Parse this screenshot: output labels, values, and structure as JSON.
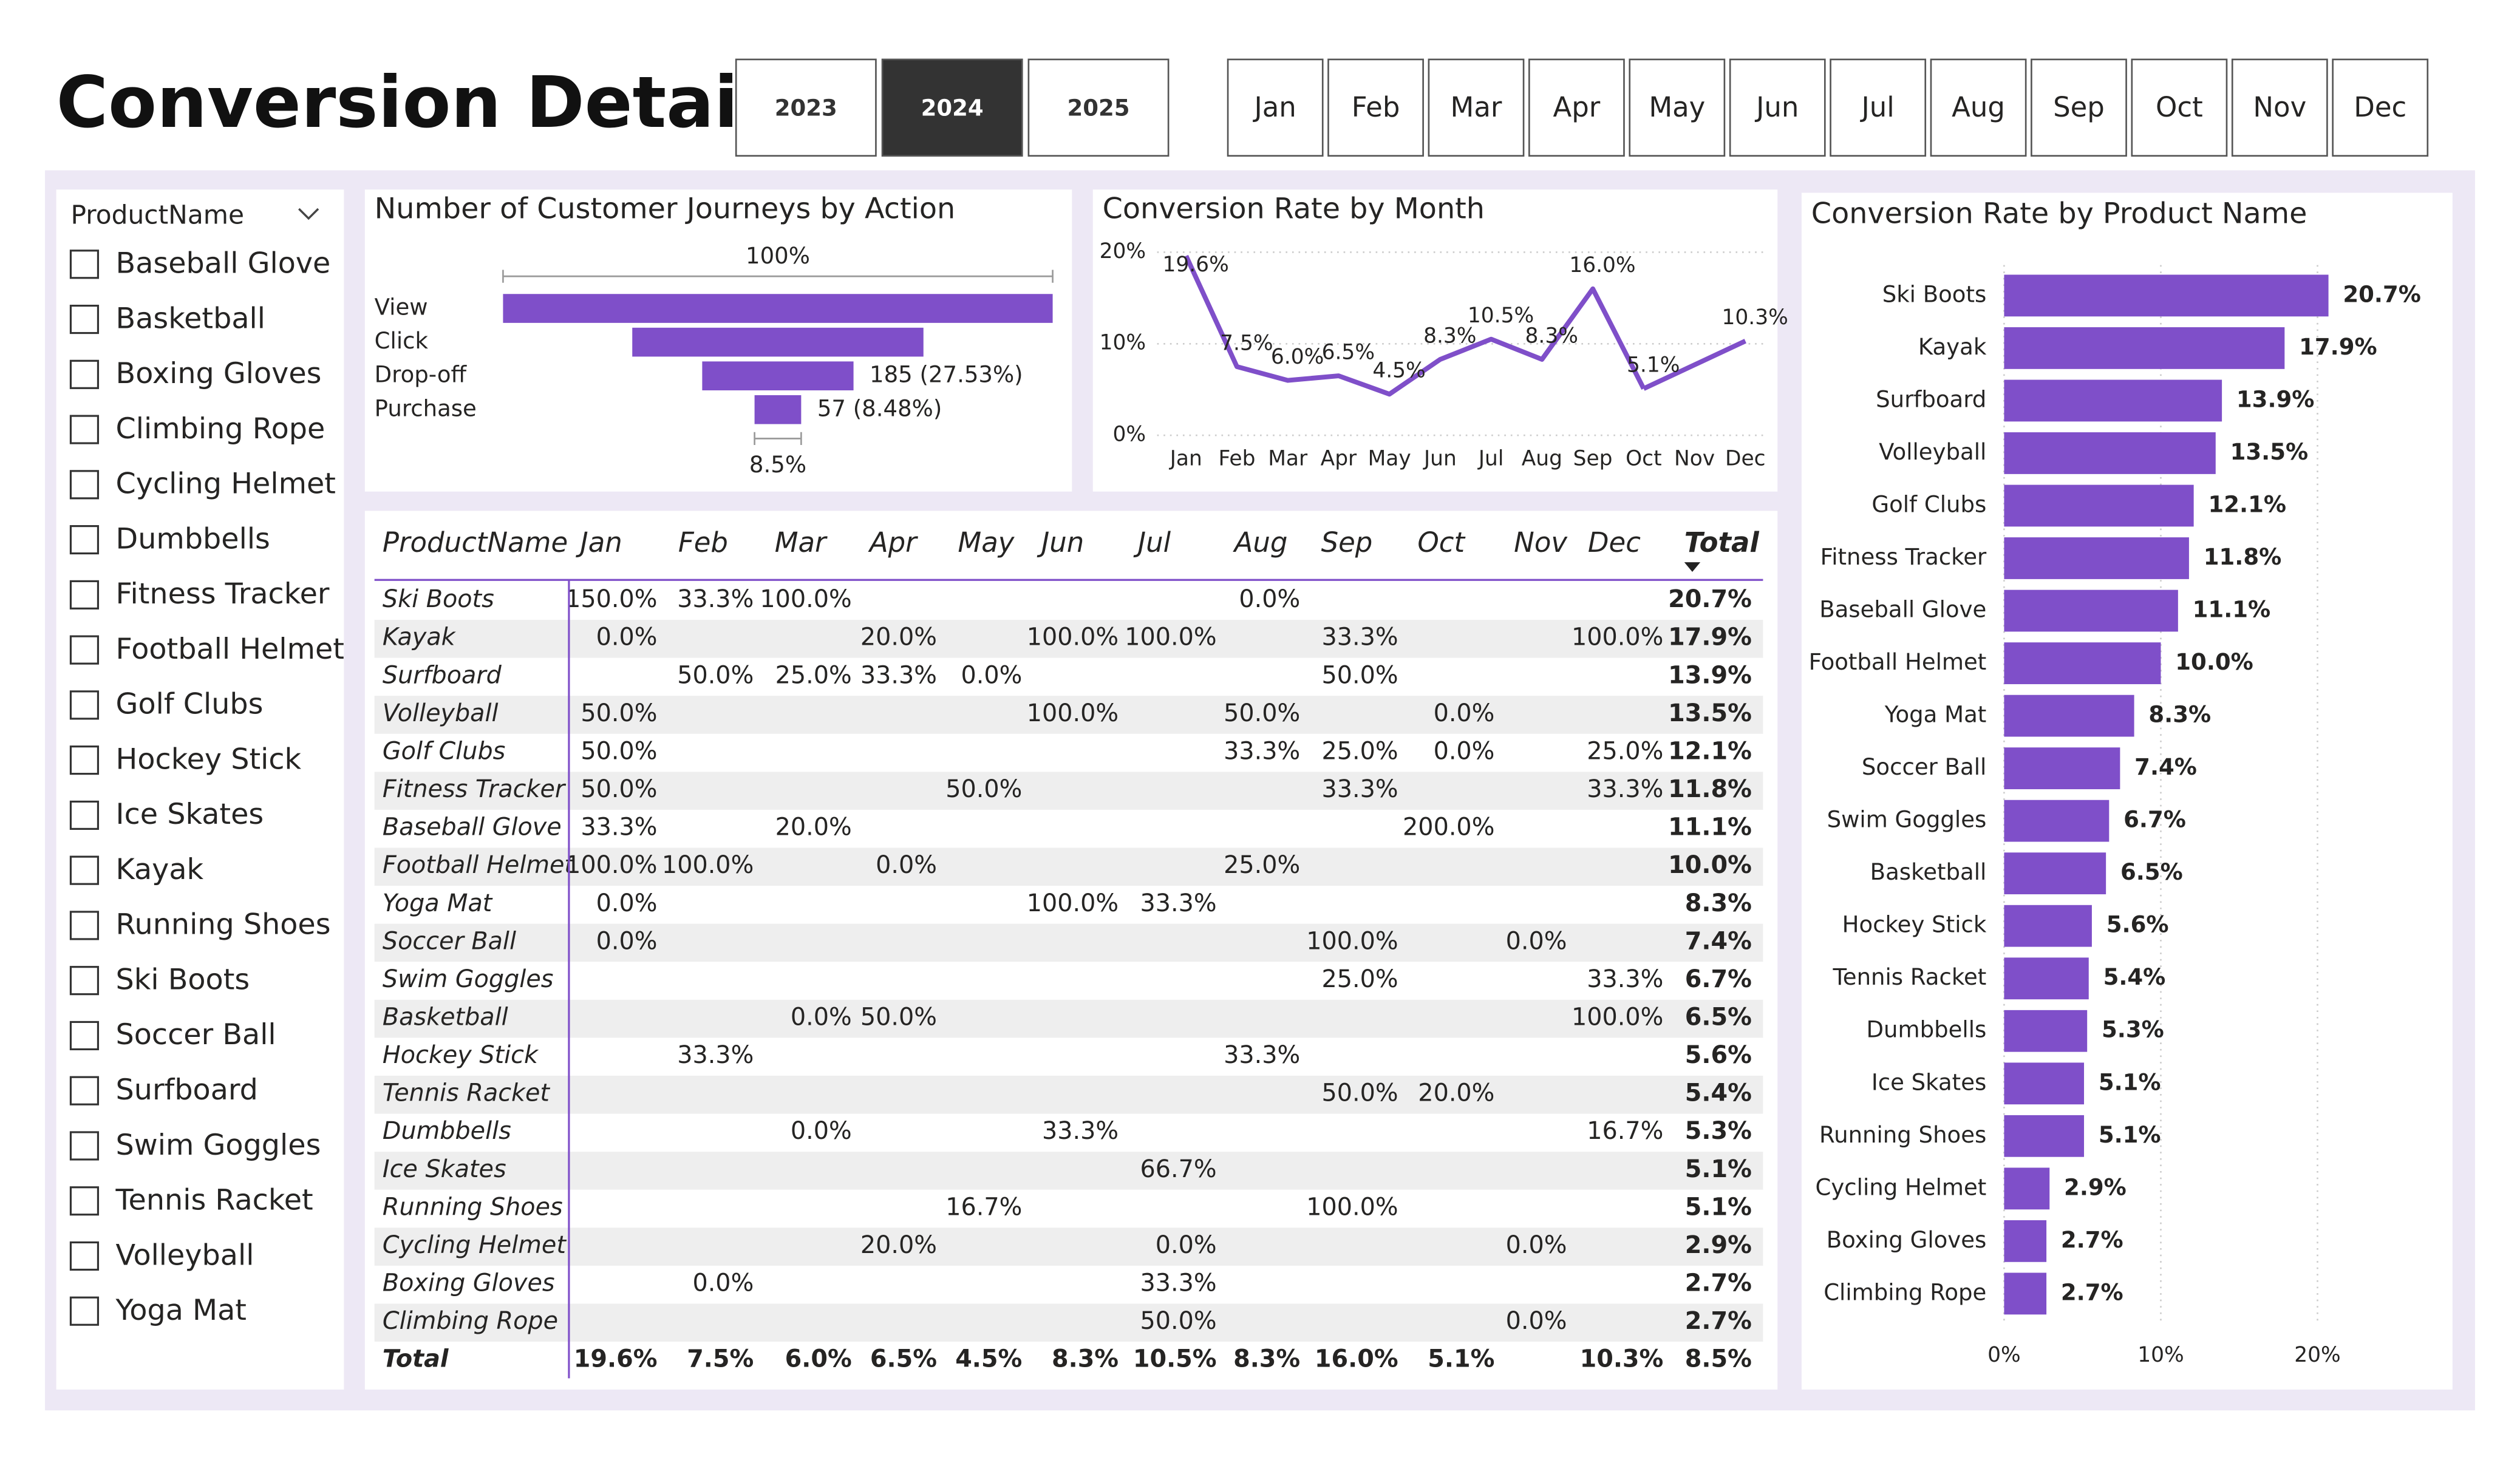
{
  "header": {
    "title": "Conversion Details",
    "years": [
      "2023",
      "2024",
      "2025"
    ],
    "selected_year": "2024",
    "months": [
      "Jan",
      "Feb",
      "Mar",
      "Apr",
      "May",
      "Jun",
      "Jul",
      "Aug",
      "Sep",
      "Oct",
      "Nov",
      "Dec"
    ]
  },
  "slicer": {
    "title": "ProductName",
    "items": [
      "Baseball Glove",
      "Basketball",
      "Boxing Gloves",
      "Climbing Rope",
      "Cycling Helmet",
      "Dumbbells",
      "Fitness Tracker",
      "Football Helmet",
      "Golf Clubs",
      "Hockey Stick",
      "Ice Skates",
      "Kayak",
      "Running Shoes",
      "Ski Boots",
      "Soccer Ball",
      "Surfboard",
      "Swim Goggles",
      "Tennis Racket",
      "Volleyball",
      "Yoga Mat"
    ]
  },
  "chart_data": [
    {
      "type": "funnel",
      "title": "Number of Customer Journeys by Action",
      "categories": [
        "View",
        "Click",
        "Drop-off",
        "Purchase"
      ],
      "values": [
        672,
        356,
        185,
        57
      ],
      "value_labels": [
        null,
        null,
        "185 (27.53%)",
        "57 (8.48%)"
      ],
      "top_label": "100%",
      "bottom_label": "8.5%",
      "color": "#7f4fc9"
    },
    {
      "type": "line",
      "title": "Conversion Rate by Month",
      "categories": [
        "Jan",
        "Feb",
        "Mar",
        "Apr",
        "May",
        "Jun",
        "Jul",
        "Aug",
        "Sep",
        "Oct",
        "Nov",
        "Dec"
      ],
      "values": [
        19.6,
        7.5,
        6.0,
        6.5,
        4.5,
        8.3,
        10.5,
        8.3,
        16.0,
        5.1,
        null,
        10.3
      ],
      "value_labels": [
        "19.6%",
        "7.5%",
        "6.0%",
        "6.5%",
        "4.5%",
        "8.3%",
        "10.5%",
        "8.3%",
        "16.0%",
        "5.1%",
        null,
        "10.3%"
      ],
      "ylim": [
        0,
        20
      ],
      "yticks": [
        {
          "value": 0,
          "label": "0%"
        },
        {
          "value": 10,
          "label": "10%"
        },
        {
          "value": 20,
          "label": "20%"
        }
      ],
      "grid": true,
      "color": "#7f4fc9"
    },
    {
      "type": "hbar",
      "title": "Conversion Rate by Product Name",
      "categories": [
        "Ski Boots",
        "Kayak",
        "Surfboard",
        "Volleyball",
        "Golf Clubs",
        "Fitness Tracker",
        "Baseball Glove",
        "Football Helmet",
        "Yoga Mat",
        "Soccer Ball",
        "Swim Goggles",
        "Basketball",
        "Hockey Stick",
        "Tennis Racket",
        "Dumbbells",
        "Ice Skates",
        "Running Shoes",
        "Cycling Helmet",
        "Boxing Gloves",
        "Climbing Rope"
      ],
      "values": [
        20.7,
        17.9,
        13.9,
        13.5,
        12.1,
        11.8,
        11.1,
        10.0,
        8.3,
        7.4,
        6.7,
        6.5,
        5.6,
        5.4,
        5.3,
        5.1,
        5.1,
        2.9,
        2.7,
        2.7
      ],
      "value_labels": [
        "20.7%",
        "17.9%",
        "13.9%",
        "13.5%",
        "12.1%",
        "11.8%",
        "11.1%",
        "10.0%",
        "8.3%",
        "7.4%",
        "6.7%",
        "6.5%",
        "5.6%",
        "5.4%",
        "5.3%",
        "5.1%",
        "5.1%",
        "2.9%",
        "2.7%",
        "2.7%"
      ],
      "xlim": [
        0,
        21
      ],
      "xticks": [
        {
          "value": 0,
          "label": "0%"
        },
        {
          "value": 10,
          "label": "10%"
        },
        {
          "value": 20,
          "label": "20%"
        }
      ],
      "grid": true,
      "color": "#7f4fc9"
    }
  ],
  "table": {
    "columns": [
      "ProductName",
      "Jan",
      "Feb",
      "Mar",
      "Apr",
      "May",
      "Jun",
      "Jul",
      "Aug",
      "Sep",
      "Oct",
      "Nov",
      "Dec",
      "Total"
    ],
    "rows": [
      [
        "Ski Boots",
        "150.0%",
        "33.3%",
        "100.0%",
        null,
        null,
        null,
        null,
        "0.0%",
        null,
        null,
        null,
        null,
        "20.7%"
      ],
      [
        "Kayak",
        "0.0%",
        null,
        null,
        "20.0%",
        null,
        "100.0%",
        "100.0%",
        null,
        "33.3%",
        null,
        null,
        "100.0%",
        "17.9%"
      ],
      [
        "Surfboard",
        null,
        "50.0%",
        "25.0%",
        "33.3%",
        "0.0%",
        null,
        null,
        null,
        "50.0%",
        null,
        null,
        null,
        "13.9%"
      ],
      [
        "Volleyball",
        "50.0%",
        null,
        null,
        null,
        null,
        "100.0%",
        null,
        "50.0%",
        null,
        "0.0%",
        null,
        null,
        "13.5%"
      ],
      [
        "Golf Clubs",
        "50.0%",
        null,
        null,
        null,
        null,
        null,
        null,
        "33.3%",
        "25.0%",
        "0.0%",
        null,
        "25.0%",
        "12.1%"
      ],
      [
        "Fitness Tracker",
        "50.0%",
        null,
        null,
        null,
        "50.0%",
        null,
        null,
        null,
        "33.3%",
        null,
        null,
        "33.3%",
        "11.8%"
      ],
      [
        "Baseball Glove",
        "33.3%",
        null,
        "20.0%",
        null,
        null,
        null,
        null,
        null,
        null,
        "200.0%",
        null,
        null,
        "11.1%"
      ],
      [
        "Football Helmet",
        "100.0%",
        "100.0%",
        null,
        "0.0%",
        null,
        null,
        null,
        "25.0%",
        null,
        null,
        null,
        null,
        "10.0%"
      ],
      [
        "Yoga Mat",
        "0.0%",
        null,
        null,
        null,
        null,
        "100.0%",
        "33.3%",
        null,
        null,
        null,
        null,
        null,
        "8.3%"
      ],
      [
        "Soccer Ball",
        "0.0%",
        null,
        null,
        null,
        null,
        null,
        null,
        null,
        "100.0%",
        null,
        "0.0%",
        null,
        "7.4%"
      ],
      [
        "Swim Goggles",
        null,
        null,
        null,
        null,
        null,
        null,
        null,
        null,
        "25.0%",
        null,
        null,
        "33.3%",
        "6.7%"
      ],
      [
        "Basketball",
        null,
        null,
        "0.0%",
        "50.0%",
        null,
        null,
        null,
        null,
        null,
        null,
        null,
        "100.0%",
        "6.5%"
      ],
      [
        "Hockey Stick",
        null,
        "33.3%",
        null,
        null,
        null,
        null,
        null,
        "33.3%",
        null,
        null,
        null,
        null,
        "5.6%"
      ],
      [
        "Tennis Racket",
        null,
        null,
        null,
        null,
        null,
        null,
        null,
        null,
        "50.0%",
        "20.0%",
        null,
        null,
        "5.4%"
      ],
      [
        "Dumbbells",
        null,
        null,
        "0.0%",
        null,
        null,
        "33.3%",
        null,
        null,
        null,
        null,
        null,
        "16.7%",
        "5.3%"
      ],
      [
        "Ice Skates",
        null,
        null,
        null,
        null,
        null,
        null,
        "66.7%",
        null,
        null,
        null,
        null,
        null,
        "5.1%"
      ],
      [
        "Running Shoes",
        null,
        null,
        null,
        null,
        "16.7%",
        null,
        null,
        null,
        "100.0%",
        null,
        null,
        null,
        "5.1%"
      ],
      [
        "Cycling Helmet",
        null,
        null,
        null,
        "20.0%",
        null,
        null,
        "0.0%",
        null,
        null,
        null,
        "0.0%",
        null,
        "2.9%"
      ],
      [
        "Boxing Gloves",
        null,
        "0.0%",
        null,
        null,
        null,
        null,
        "33.3%",
        null,
        null,
        null,
        null,
        null,
        "2.7%"
      ],
      [
        "Climbing Rope",
        null,
        null,
        null,
        null,
        null,
        null,
        "50.0%",
        null,
        null,
        null,
        "0.0%",
        null,
        "2.7%"
      ],
      [
        "Total",
        "19.6%",
        "7.5%",
        "6.0%",
        "6.5%",
        "4.5%",
        "8.3%",
        "10.5%",
        "8.3%",
        "16.0%",
        "5.1%",
        null,
        "10.3%",
        "8.5%"
      ]
    ]
  }
}
